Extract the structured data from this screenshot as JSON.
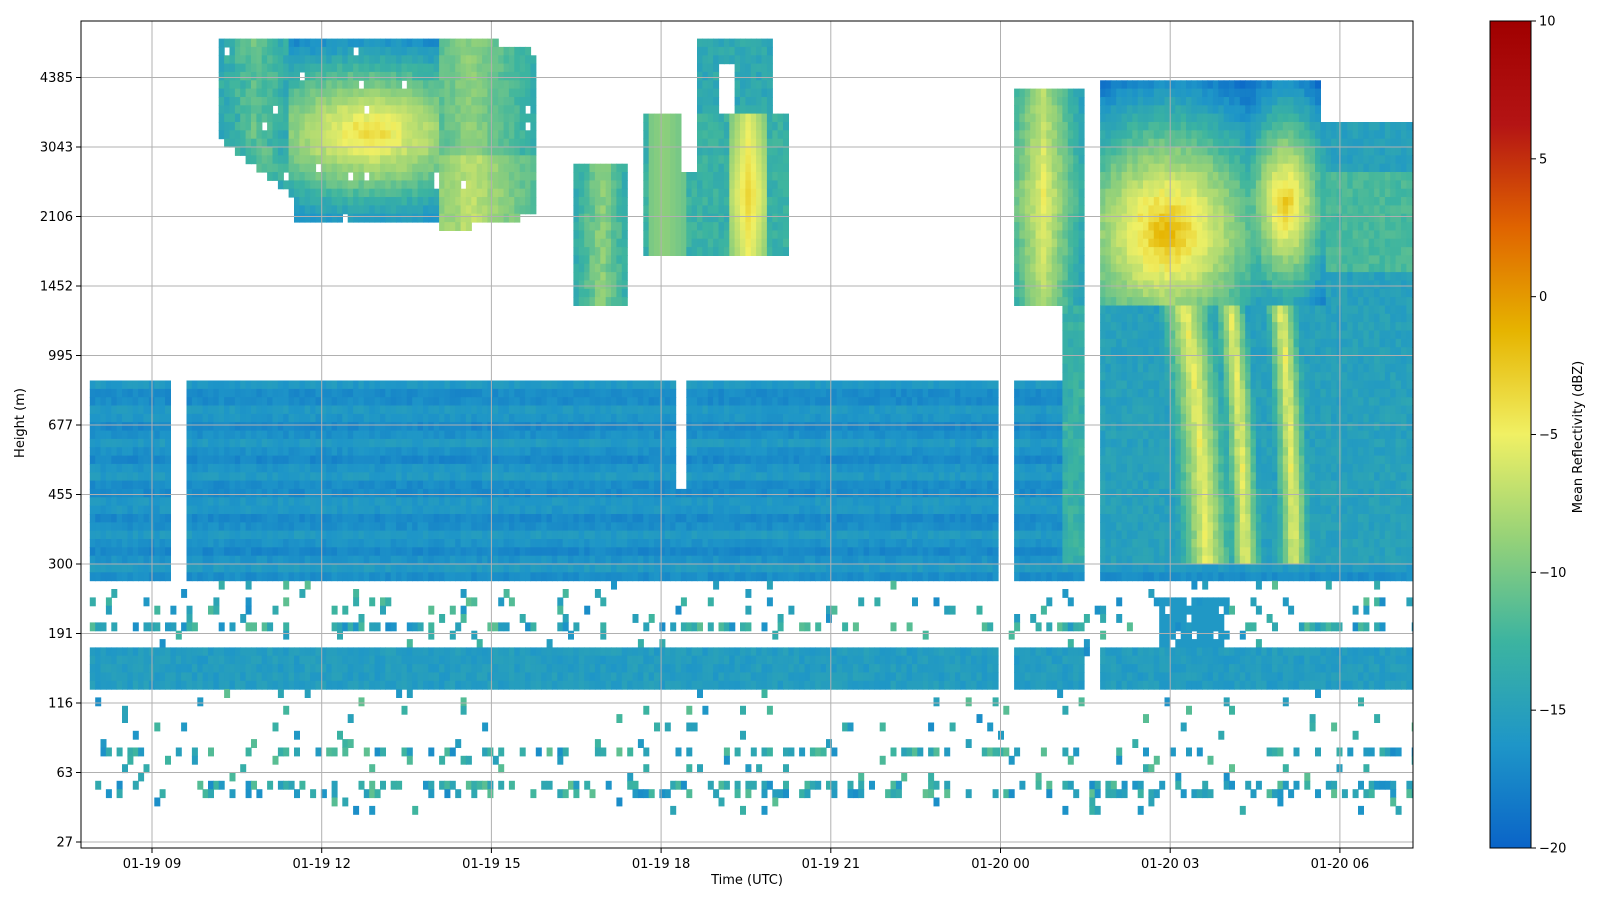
{
  "chart_data": {
    "type": "heatmap",
    "title": "",
    "xlabel": "Time (UTC)",
    "ylabel": "Height (m)",
    "colorbar_label": "Mean Reflectivity (dBZ)",
    "x_ticks": [
      "01-19 09",
      "01-19 12",
      "01-19 15",
      "01-19 18",
      "01-19 21",
      "01-20 00",
      "01-20 03",
      "01-20 06"
    ],
    "y_ticks": [
      "27",
      "63",
      "116",
      "191",
      "300",
      "455",
      "677",
      "995",
      "1452",
      "2106",
      "3043",
      "4385"
    ],
    "x_range_hours": [
      7.9,
      31.45
    ],
    "colorbar_ticks": [
      "10",
      "5",
      "0",
      "−5",
      "−10",
      "−15",
      "−20"
    ],
    "colorbar_range": [
      -20,
      10
    ],
    "colormap": [
      "#0a64c8",
      "#1e96c8",
      "#3cb4a0",
      "#96d278",
      "#f0f064",
      "#e6b400",
      "#e06400",
      "#b41414",
      "#a00000"
    ],
    "grid": true,
    "regions": [
      {
        "label": "upper cloud 01-19 10-15",
        "t": [
          10.1,
          15.7
        ],
        "z": [
          1900,
          5200
        ],
        "core_dbz": 0
      },
      {
        "label": "cloud 01-19 16-20",
        "t": [
          16.3,
          20.2
        ],
        "z": [
          1200,
          5000
        ],
        "core_dbz": -4
      },
      {
        "label": "precipitation 01-20 01-06",
        "t": [
          24.2,
          31.2
        ],
        "z": [
          300,
          4200
        ],
        "core_dbz": 0
      },
      {
        "label": "low layer",
        "t": [
          8.0,
          31.2
        ],
        "z": [
          260,
          860
        ],
        "core_dbz": -16
      },
      {
        "label": "surface layer",
        "t": [
          8.0,
          31.4
        ],
        "z": [
          125,
          165
        ],
        "core_dbz": -15
      }
    ]
  }
}
